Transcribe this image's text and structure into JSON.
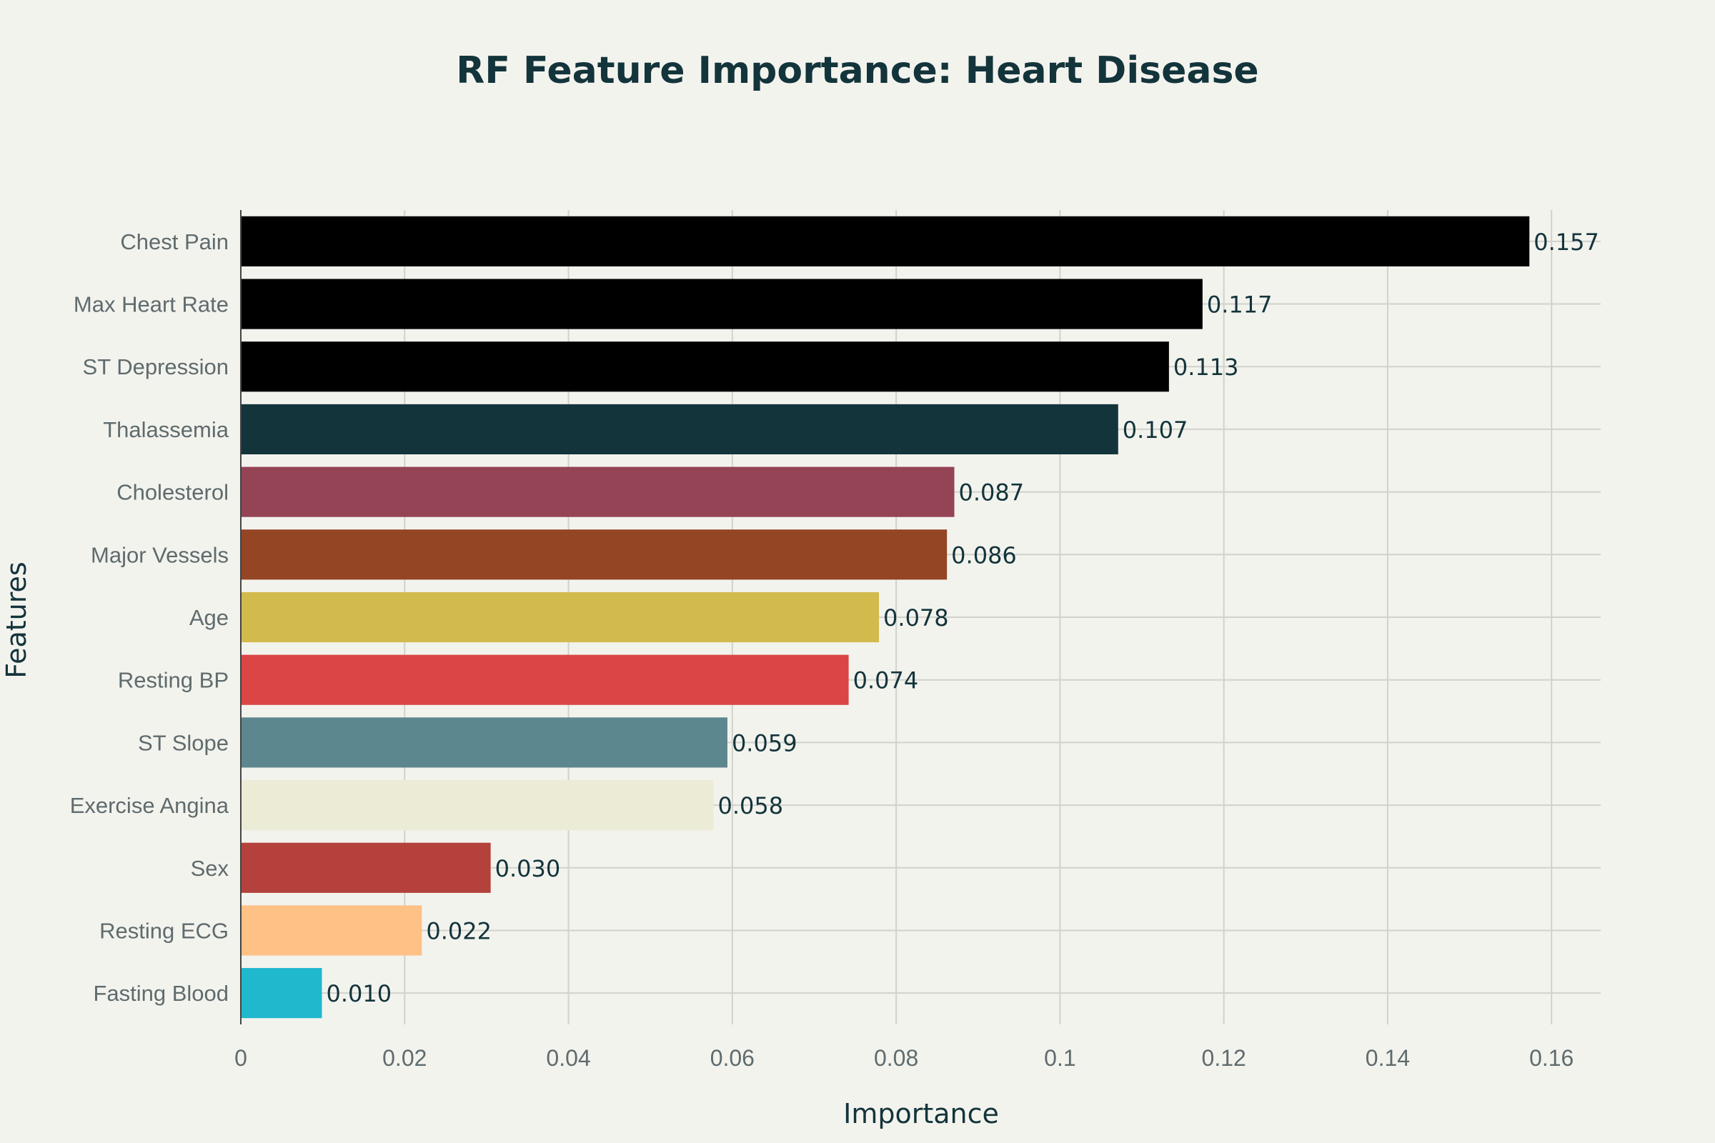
{
  "chart_data": {
    "type": "bar",
    "orientation": "horizontal",
    "title": "RF Feature Importance: Heart Disease",
    "xlabel": "Importance",
    "ylabel": "Features",
    "xlim": [
      0,
      0.166
    ],
    "xticks": [
      0,
      0.02,
      0.04,
      0.06,
      0.08,
      0.1,
      0.12,
      0.14,
      0.16
    ],
    "xtick_labels": [
      "0",
      "0.02",
      "0.04",
      "0.06",
      "0.08",
      "0.1",
      "0.12",
      "0.14",
      "0.16"
    ],
    "grid": true,
    "categories": [
      "Chest Pain",
      "Max Heart Rate",
      "ST Depression",
      "Thalassemia",
      "Cholesterol",
      "Major Vessels",
      "Age",
      "Resting BP",
      "ST Slope",
      "Exercise Angina",
      "Sex",
      "Resting ECG",
      "Fasting Blood"
    ],
    "values": [
      0.1573,
      0.1174,
      0.1133,
      0.1071,
      0.0871,
      0.0862,
      0.0779,
      0.0742,
      0.0594,
      0.0577,
      0.0305,
      0.0221,
      0.0099
    ],
    "data_labels": [
      "0.157",
      "0.117",
      "0.113",
      "0.107",
      "0.087",
      "0.086",
      "0.078",
      "0.074",
      "0.059",
      "0.058",
      "0.030",
      "0.022",
      "0.010"
    ],
    "colors": [
      "#000000",
      "#000000",
      "#000000",
      "#13343b",
      "#944454",
      "#944524",
      "#d2ba4c",
      "#db4545",
      "#5d878f",
      "#ecebd5",
      "#b4413c",
      "#ffc185",
      "#1fb8cd"
    ]
  }
}
